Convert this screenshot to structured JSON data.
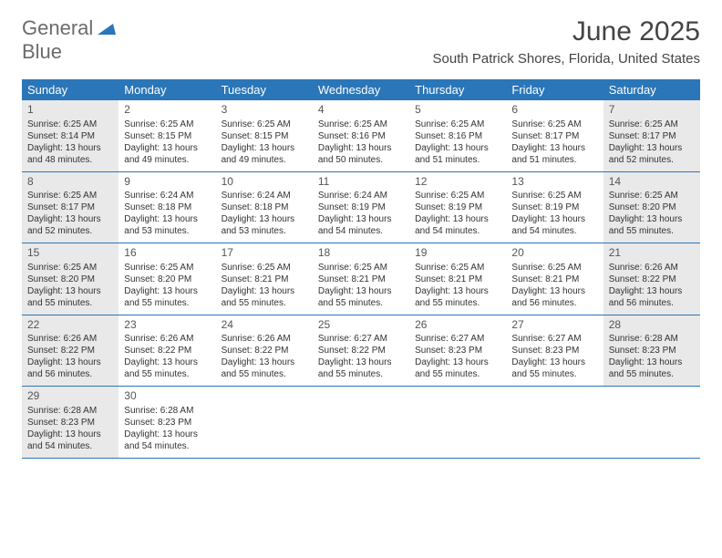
{
  "logo": {
    "text1": "General",
    "text2": "Blue"
  },
  "title": "June 2025",
  "subtitle": "South Patrick Shores, Florida, United States",
  "colors": {
    "header_bg": "#2a76b8",
    "header_text": "#ffffff",
    "shaded_bg": "#e9e9e9",
    "text": "#333333",
    "title_color": "#444444",
    "logo_gray": "#6b6b6b",
    "logo_blue": "#2a76b8"
  },
  "day_names": [
    "Sunday",
    "Monday",
    "Tuesday",
    "Wednesday",
    "Thursday",
    "Friday",
    "Saturday"
  ],
  "weeks": [
    [
      {
        "n": "1",
        "shaded": true,
        "sr": "6:25 AM",
        "ss": "8:14 PM",
        "dl": "13 hours and 48 minutes."
      },
      {
        "n": "2",
        "shaded": false,
        "sr": "6:25 AM",
        "ss": "8:15 PM",
        "dl": "13 hours and 49 minutes."
      },
      {
        "n": "3",
        "shaded": false,
        "sr": "6:25 AM",
        "ss": "8:15 PM",
        "dl": "13 hours and 49 minutes."
      },
      {
        "n": "4",
        "shaded": false,
        "sr": "6:25 AM",
        "ss": "8:16 PM",
        "dl": "13 hours and 50 minutes."
      },
      {
        "n": "5",
        "shaded": false,
        "sr": "6:25 AM",
        "ss": "8:16 PM",
        "dl": "13 hours and 51 minutes."
      },
      {
        "n": "6",
        "shaded": false,
        "sr": "6:25 AM",
        "ss": "8:17 PM",
        "dl": "13 hours and 51 minutes."
      },
      {
        "n": "7",
        "shaded": true,
        "sr": "6:25 AM",
        "ss": "8:17 PM",
        "dl": "13 hours and 52 minutes."
      }
    ],
    [
      {
        "n": "8",
        "shaded": true,
        "sr": "6:25 AM",
        "ss": "8:17 PM",
        "dl": "13 hours and 52 minutes."
      },
      {
        "n": "9",
        "shaded": false,
        "sr": "6:24 AM",
        "ss": "8:18 PM",
        "dl": "13 hours and 53 minutes."
      },
      {
        "n": "10",
        "shaded": false,
        "sr": "6:24 AM",
        "ss": "8:18 PM",
        "dl": "13 hours and 53 minutes."
      },
      {
        "n": "11",
        "shaded": false,
        "sr": "6:24 AM",
        "ss": "8:19 PM",
        "dl": "13 hours and 54 minutes."
      },
      {
        "n": "12",
        "shaded": false,
        "sr": "6:25 AM",
        "ss": "8:19 PM",
        "dl": "13 hours and 54 minutes."
      },
      {
        "n": "13",
        "shaded": false,
        "sr": "6:25 AM",
        "ss": "8:19 PM",
        "dl": "13 hours and 54 minutes."
      },
      {
        "n": "14",
        "shaded": true,
        "sr": "6:25 AM",
        "ss": "8:20 PM",
        "dl": "13 hours and 55 minutes."
      }
    ],
    [
      {
        "n": "15",
        "shaded": true,
        "sr": "6:25 AM",
        "ss": "8:20 PM",
        "dl": "13 hours and 55 minutes."
      },
      {
        "n": "16",
        "shaded": false,
        "sr": "6:25 AM",
        "ss": "8:20 PM",
        "dl": "13 hours and 55 minutes."
      },
      {
        "n": "17",
        "shaded": false,
        "sr": "6:25 AM",
        "ss": "8:21 PM",
        "dl": "13 hours and 55 minutes."
      },
      {
        "n": "18",
        "shaded": false,
        "sr": "6:25 AM",
        "ss": "8:21 PM",
        "dl": "13 hours and 55 minutes."
      },
      {
        "n": "19",
        "shaded": false,
        "sr": "6:25 AM",
        "ss": "8:21 PM",
        "dl": "13 hours and 55 minutes."
      },
      {
        "n": "20",
        "shaded": false,
        "sr": "6:25 AM",
        "ss": "8:21 PM",
        "dl": "13 hours and 56 minutes."
      },
      {
        "n": "21",
        "shaded": true,
        "sr": "6:26 AM",
        "ss": "8:22 PM",
        "dl": "13 hours and 56 minutes."
      }
    ],
    [
      {
        "n": "22",
        "shaded": true,
        "sr": "6:26 AM",
        "ss": "8:22 PM",
        "dl": "13 hours and 56 minutes."
      },
      {
        "n": "23",
        "shaded": false,
        "sr": "6:26 AM",
        "ss": "8:22 PM",
        "dl": "13 hours and 55 minutes."
      },
      {
        "n": "24",
        "shaded": false,
        "sr": "6:26 AM",
        "ss": "8:22 PM",
        "dl": "13 hours and 55 minutes."
      },
      {
        "n": "25",
        "shaded": false,
        "sr": "6:27 AM",
        "ss": "8:22 PM",
        "dl": "13 hours and 55 minutes."
      },
      {
        "n": "26",
        "shaded": false,
        "sr": "6:27 AM",
        "ss": "8:23 PM",
        "dl": "13 hours and 55 minutes."
      },
      {
        "n": "27",
        "shaded": false,
        "sr": "6:27 AM",
        "ss": "8:23 PM",
        "dl": "13 hours and 55 minutes."
      },
      {
        "n": "28",
        "shaded": true,
        "sr": "6:28 AM",
        "ss": "8:23 PM",
        "dl": "13 hours and 55 minutes."
      }
    ],
    [
      {
        "n": "29",
        "shaded": true,
        "sr": "6:28 AM",
        "ss": "8:23 PM",
        "dl": "13 hours and 54 minutes."
      },
      {
        "n": "30",
        "shaded": false,
        "sr": "6:28 AM",
        "ss": "8:23 PM",
        "dl": "13 hours and 54 minutes."
      },
      {
        "n": "",
        "shaded": false,
        "sr": "",
        "ss": "",
        "dl": ""
      },
      {
        "n": "",
        "shaded": false,
        "sr": "",
        "ss": "",
        "dl": ""
      },
      {
        "n": "",
        "shaded": false,
        "sr": "",
        "ss": "",
        "dl": ""
      },
      {
        "n": "",
        "shaded": false,
        "sr": "",
        "ss": "",
        "dl": ""
      },
      {
        "n": "",
        "shaded": false,
        "sr": "",
        "ss": "",
        "dl": ""
      }
    ]
  ],
  "labels": {
    "sunrise": "Sunrise: ",
    "sunset": "Sunset: ",
    "daylight": "Daylight: "
  }
}
